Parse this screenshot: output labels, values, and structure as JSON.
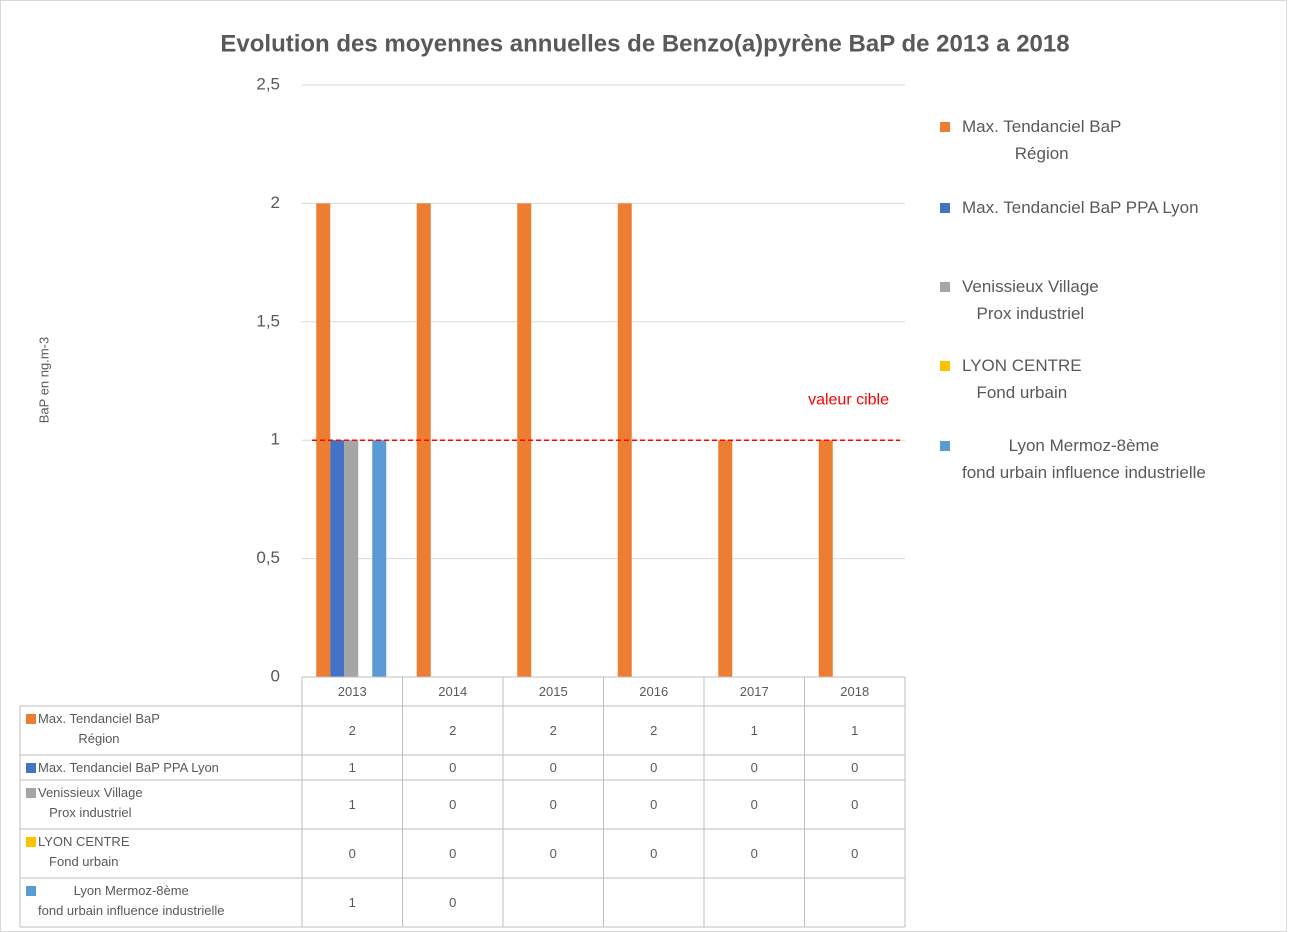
{
  "chart_data": {
    "type": "bar",
    "title": "Evolution des moyennes annuelles  de Benzo(a)pyrène BaP de 2013 a 2018",
    "y_axis_label": "BaP en ng.m-3",
    "categories": [
      "2013",
      "2014",
      "2015",
      "2016",
      "2017",
      "2018"
    ],
    "series": [
      {
        "name": "Max. Tendanciel BaP\nRégion",
        "color": "#ED7D31",
        "values": [
          2,
          2,
          2,
          2,
          1,
          1
        ]
      },
      {
        "name": "Max. Tendanciel BaP PPA  Lyon",
        "color": "#4472C4",
        "values": [
          1,
          0,
          0,
          0,
          0,
          0
        ]
      },
      {
        "name": "Venissieux Village\nProx industriel",
        "color": "#A5A5A5",
        "values": [
          1,
          0,
          0,
          0,
          0,
          0
        ]
      },
      {
        "name": "LYON CENTRE\nFond urbain",
        "color": "#FFC000",
        "values": [
          0,
          0,
          0,
          0,
          0,
          0
        ]
      },
      {
        "name": "Lyon Mermoz-8ème\nfond urbain influence industrielle",
        "color": "#5B9BD5",
        "values": [
          1,
          0,
          null,
          null,
          null,
          null
        ]
      }
    ],
    "ylim": [
      0,
      2.5
    ],
    "yticks": [
      0,
      {
        "value": 0.5,
        "label": "0,5"
      },
      1,
      {
        "value": 1.5,
        "label": "1,5"
      },
      2,
      {
        "value": 2.5,
        "label": "2,5"
      }
    ],
    "grid": true,
    "reference_line": {
      "value": 1,
      "label": "valeur cible",
      "color": "#FF0000"
    },
    "legend": "right",
    "data_table": true
  }
}
